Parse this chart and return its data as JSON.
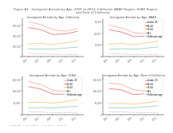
{
  "title_line1": "Figure A5.  Immigrant Arrivals by Age, 2005 to 2013, California, ABAG Region, SCAG Region,",
  "title_line2": "             and Rest of California",
  "years": [
    2005,
    2007,
    2009,
    2011,
    2013
  ],
  "subplots": [
    {
      "title": "Immigrant Arrivals by Age: California",
      "lines": [
        {
          "label": "Under 25",
          "color": "#f0a0a0",
          "dashed": false,
          "values": [
            330000,
            305000,
            255000,
            240000,
            265000
          ]
        },
        {
          "label": "25-44",
          "color": "#e06060",
          "dashed": false,
          "values": [
            275000,
            255000,
            208000,
            215000,
            238000
          ]
        },
        {
          "label": "45-64",
          "color": "#f0c060",
          "dashed": false,
          "values": [
            118000,
            122000,
            112000,
            128000,
            148000
          ]
        },
        {
          "label": "65+",
          "color": "#80c8b8",
          "dashed": false,
          "values": [
            68000,
            70000,
            68000,
            78000,
            88000
          ]
        },
        {
          "label": "Unknown",
          "color": "#c0c0c0",
          "dashed": true,
          "values": [
            28000,
            23000,
            18000,
            16000,
            14000
          ]
        }
      ],
      "ylim": [
        0,
        360000
      ],
      "yticks": [
        0,
        100000,
        200000,
        300000
      ],
      "ytick_labels": [
        "0",
        "100,000",
        "200,000",
        "300,000"
      ],
      "has_legend": false
    },
    {
      "title": "Immigrant Arrivals by Age: ABAG",
      "lines": [
        {
          "label": "Under 25",
          "color": "#f0a0a0",
          "dashed": false,
          "values": [
            54000,
            49000,
            41000,
            39000,
            43000
          ]
        },
        {
          "label": "25-44",
          "color": "#e06060",
          "dashed": false,
          "values": [
            46000,
            42000,
            34000,
            35000,
            38000
          ]
        },
        {
          "label": "45-64",
          "color": "#f0c060",
          "dashed": false,
          "values": [
            21000,
            22000,
            20000,
            23000,
            26000
          ]
        },
        {
          "label": "65+",
          "color": "#80c8b8",
          "dashed": false,
          "values": [
            12000,
            13000,
            12000,
            14000,
            16000
          ]
        },
        {
          "label": "Unknown",
          "color": "#c0c0c0",
          "dashed": true,
          "values": [
            4500,
            4000,
            3200,
            2800,
            2400
          ]
        }
      ],
      "ylim": [
        0,
        65000
      ],
      "yticks": [
        0,
        20000,
        40000,
        60000
      ],
      "ytick_labels": [
        "0",
        "20,000",
        "40,000",
        "60,000"
      ],
      "has_legend": true,
      "legend_labels": [
        "Under 25",
        "25-44",
        "45-64",
        "65+",
        "Unknown age"
      ],
      "legend_colors": [
        "#f0a0a0",
        "#e06060",
        "#f0c060",
        "#80c8b8",
        "#c0c0c0"
      ],
      "legend_dashed": [
        false,
        false,
        false,
        false,
        true
      ]
    },
    {
      "title": "Immigrant Arrivals by Age: SCAG",
      "lines": [
        {
          "label": "Under 25",
          "color": "#f0a0a0",
          "dashed": false,
          "values": [
            140000,
            128000,
            102000,
            98000,
            106000
          ]
        },
        {
          "label": "25-44",
          "color": "#e06060",
          "dashed": false,
          "values": [
            118000,
            108000,
            86000,
            86000,
            93000
          ]
        },
        {
          "label": "45-64",
          "color": "#f0c060",
          "dashed": false,
          "values": [
            50000,
            52000,
            48000,
            54000,
            62000
          ]
        },
        {
          "label": "65+",
          "color": "#80c8b8",
          "dashed": false,
          "values": [
            27000,
            29000,
            27000,
            31000,
            35000
          ]
        },
        {
          "label": "Unknown",
          "color": "#c0c0c0",
          "dashed": true,
          "values": [
            12000,
            9500,
            7500,
            6500,
            5500
          ]
        }
      ],
      "ylim": [
        0,
        160000
      ],
      "yticks": [
        0,
        50000,
        100000,
        150000
      ],
      "ytick_labels": [
        "0",
        "50,000",
        "100,000",
        "150,000"
      ],
      "has_legend": true,
      "legend_labels": [
        "Under 25",
        "25-44",
        "45-64",
        "65+",
        "Unknown age"
      ],
      "legend_colors": [
        "#f0a0a0",
        "#e06060",
        "#f0c060",
        "#80c8b8",
        "#c0c0c0"
      ],
      "legend_dashed": [
        false,
        false,
        false,
        false,
        true
      ]
    },
    {
      "title": "Immigrant Arrivals by Age: Rest of California",
      "lines": [
        {
          "label": "Under 25",
          "color": "#f0a0a0",
          "dashed": false,
          "values": [
            133000,
            128000,
            105000,
            98000,
            110000
          ]
        },
        {
          "label": "25-44",
          "color": "#e06060",
          "dashed": false,
          "values": [
            110000,
            104000,
            84000,
            88000,
            102000
          ]
        },
        {
          "label": "45-64",
          "color": "#f0c060",
          "dashed": false,
          "values": [
            45000,
            47000,
            43000,
            49000,
            57000
          ]
        },
        {
          "label": "65+",
          "color": "#80c8b8",
          "dashed": false,
          "values": [
            28000,
            27000,
            28000,
            32000,
            36000
          ]
        },
        {
          "label": "Unknown",
          "color": "#c0c0c0",
          "dashed": true,
          "values": [
            11500,
            10000,
            8000,
            7000,
            6000
          ]
        }
      ],
      "ylim": [
        0,
        160000
      ],
      "yticks": [
        0,
        50000,
        100000,
        150000
      ],
      "ytick_labels": [
        "0",
        "50,000",
        "100,000",
        "150,000"
      ],
      "has_legend": true,
      "legend_labels": [
        "Under 25",
        "25-44",
        "45-64",
        "65+",
        "Unknown age"
      ],
      "legend_colors": [
        "#f0a0a0",
        "#e06060",
        "#f0c060",
        "#80c8b8",
        "#c0c0c0"
      ],
      "legend_dashed": [
        false,
        false,
        false,
        false,
        true
      ]
    }
  ],
  "footer": "* Includes TBD    ** 0 to 3 Mos (>)    *** 3+ Mos (>)    Source: A5",
  "bg_color": "#ffffff",
  "title_fontsize": 2.8,
  "subtitle_fontsize": 2.5,
  "tick_fontsize": 2.0,
  "legend_fontsize": 2.0,
  "footer_fontsize": 1.6
}
